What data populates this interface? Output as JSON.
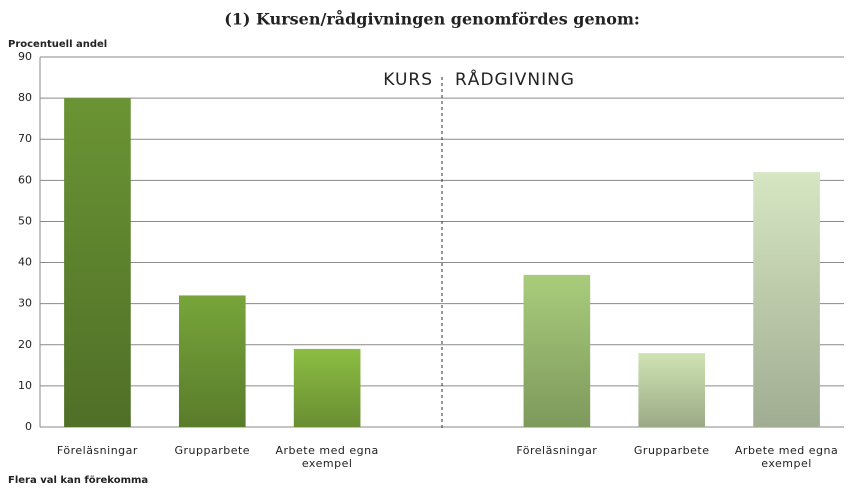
{
  "chart_data": {
    "type": "bar",
    "title": "(1) Kursen/rådgivningen genomfördes genom:",
    "y_label": "Procentuell andel",
    "footnote": "Flera val kan förekomma",
    "annotations": [
      "KURS",
      "RÅDGIVNING"
    ],
    "categories": [
      "Föreläsningar",
      "Grupparbete",
      "Arbete med egna exempel",
      null,
      "Föreläsningar",
      "Grupparbete",
      "Arbete med egna exempel"
    ],
    "values": [
      80,
      32,
      19,
      null,
      37,
      18,
      62
    ],
    "colors": [
      "#6a9434",
      "#77a53a",
      "#8cbd43",
      null,
      "#a8cc7b",
      "#cfe3b3",
      "#d6e6c2"
    ],
    "ylim": [
      0,
      90
    ],
    "yticks": [
      0,
      10,
      20,
      30,
      40,
      50,
      60,
      70,
      80,
      90
    ],
    "grid": true
  }
}
